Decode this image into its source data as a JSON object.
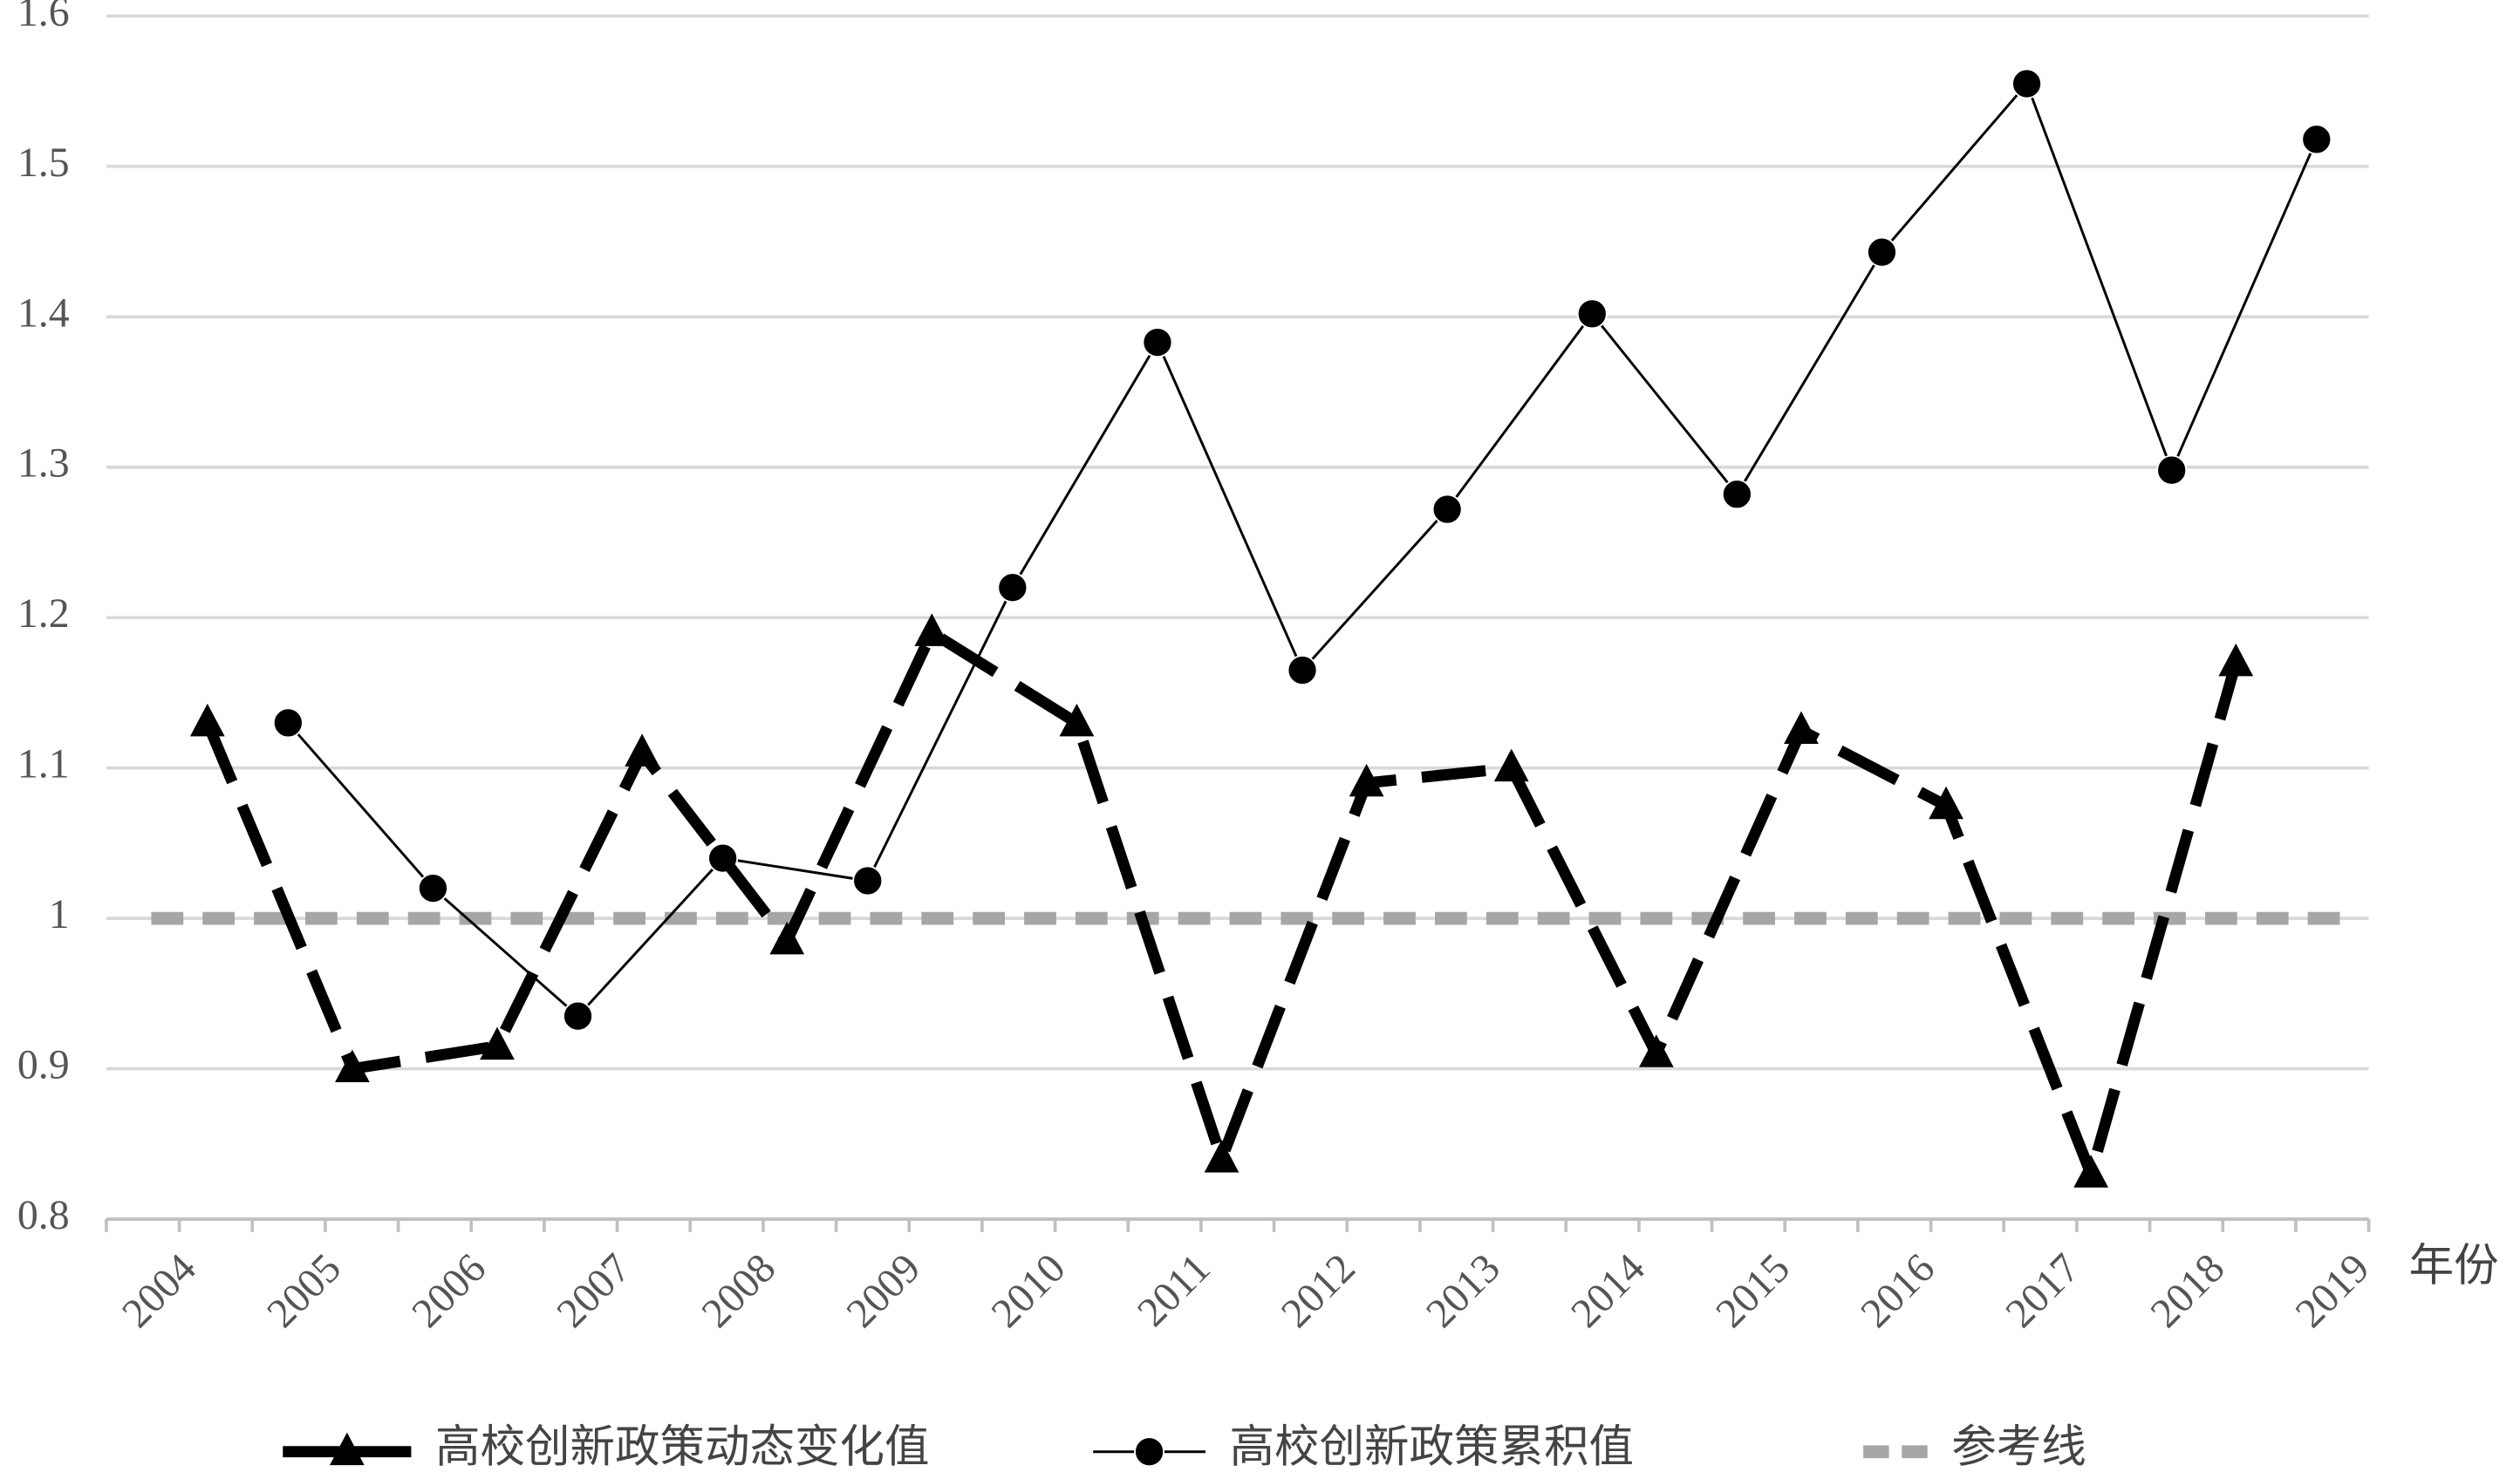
{
  "chart_data": {
    "type": "line",
    "xlabel": "年份",
    "categories": [
      "2004",
      "2005",
      "2006",
      "2007",
      "2008",
      "2009",
      "2010",
      "2011",
      "2012",
      "2013",
      "2014",
      "2015",
      "2016",
      "2017",
      "2018",
      "2019"
    ],
    "series": [
      {
        "name": "高校创新政策动态变化值",
        "color": "#000000",
        "dashed": true,
        "marker": "triangle",
        "values": [
          1.13,
          0.9,
          0.915,
          1.11,
          0.985,
          1.19,
          1.13,
          0.84,
          1.09,
          1.1,
          0.91,
          1.125,
          1.075,
          0.83,
          1.17,
          null
        ]
      },
      {
        "name": "高校创新政策累积值",
        "color": "#000000",
        "dashed": false,
        "marker": "circle",
        "values": [
          null,
          1.13,
          1.02,
          0.935,
          1.04,
          1.025,
          1.22,
          1.383,
          1.165,
          1.272,
          1.402,
          1.282,
          1.443,
          1.555,
          1.298,
          1.518
        ]
      },
      {
        "name": "参考线",
        "color": "#a6a6a6",
        "dashed": true,
        "marker": "none",
        "values": [
          1,
          1,
          1,
          1,
          1,
          1,
          1,
          1,
          1,
          1,
          1,
          1,
          1,
          1,
          1,
          1
        ]
      }
    ],
    "ylim": [
      0.8,
      1.6
    ],
    "yticks": [
      0.8,
      0.9,
      1,
      1.1,
      1.2,
      1.3,
      1.4,
      1.5,
      1.6
    ],
    "grid": true,
    "legend": "bottom"
  }
}
